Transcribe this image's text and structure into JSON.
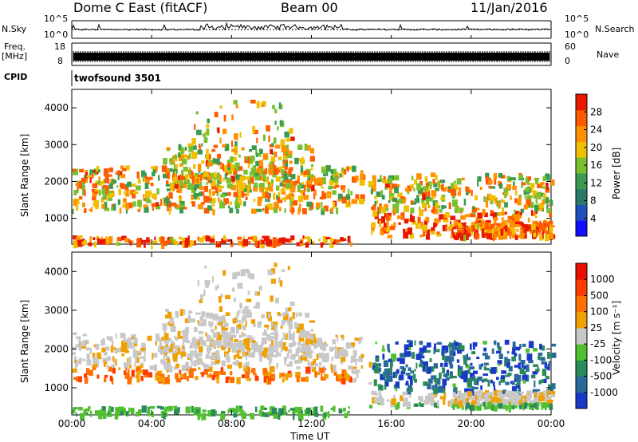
{
  "header": {
    "station": "Dome C East (fitACF)",
    "beam": "Beam 00",
    "date": "11/Jan/2016"
  },
  "top_panels": {
    "nsky_label": "N.Sky",
    "nsky_ticks": [
      "10^5",
      "10^0"
    ],
    "nsearch_label": "N.Search",
    "nsearch_ticks": [
      "10^5",
      "10^0"
    ],
    "freq_label": "Freq.",
    "freq_unit": "[MHz]",
    "freq_ticks": [
      "18",
      "8"
    ],
    "nave_label": "Nave",
    "nave_ticks": [
      "60",
      "0"
    ],
    "cpid_label": "CPID",
    "cpid_value": "twofsound 3501"
  },
  "chart_data": [
    {
      "type": "heatmap",
      "name": "power",
      "ylabel": "Slant Range [km]",
      "ylim": [
        300,
        4500
      ],
      "yticks": [
        1000,
        2000,
        3000,
        4000
      ],
      "xlim": [
        0,
        24
      ],
      "xticks": [
        "00:00",
        "04:00",
        "08:00",
        "12:00",
        "16:00",
        "20:00",
        "00:00"
      ],
      "colorbar": {
        "label": "Power [dB]",
        "ticks": [
          "28",
          "24",
          "20",
          "16",
          "12",
          "8",
          "4"
        ],
        "colors": [
          "#1010ff",
          "#2050c0",
          "#2a7a6a",
          "#3a9a50",
          "#78c030",
          "#f0c000",
          "#ff9000",
          "#ff5a00",
          "#e81800"
        ]
      }
    },
    {
      "type": "heatmap",
      "name": "velocity",
      "ylabel": "Slant Range [km]",
      "ylim": [
        300,
        4500
      ],
      "yticks": [
        1000,
        2000,
        3000,
        4000
      ],
      "xlim": [
        0,
        24
      ],
      "xticks": [
        "00:00",
        "04:00",
        "08:00",
        "12:00",
        "16:00",
        "20:00",
        "00:00"
      ],
      "xlabel": "Time UT",
      "colorbar": {
        "label": "Velocity [m s⁻¹]",
        "ticks": [
          "1000",
          "500",
          "100",
          "25",
          "-25",
          "-100",
          "-500",
          "-1000"
        ],
        "colors": [
          "#1838c8",
          "#2a6a9a",
          "#2a8a5a",
          "#50c030",
          "#c8c8c8",
          "#f0a000",
          "#ff7000",
          "#ff3c00",
          "#e81000"
        ]
      }
    }
  ]
}
